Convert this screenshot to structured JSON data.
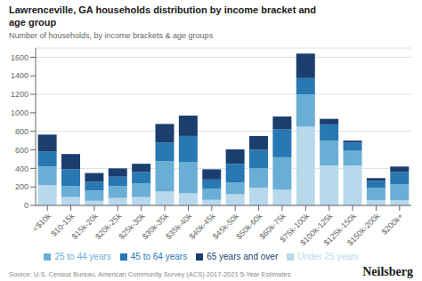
{
  "chart_data": {
    "type": "bar",
    "stacked": true,
    "title": "Lawrenceville, GA households distribution by income bracket and\nage group",
    "subtitle": "Number of households, by income brackets & age groups",
    "source": "Source: U.S. Census Bureau, American Community Survey (ACS) 2017-2021 5-Year Estimates",
    "annotations": [
      "Neilsberg"
    ],
    "categories": [
      "<$10k",
      "$10-15k",
      "$15k-20k",
      "$20k-25k",
      "$25k-30k",
      "$30k-35k",
      "$35k-40k",
      "$40k-45k",
      "$45k-50k",
      "$50k-60k",
      "$60k-75k",
      "$75k-100k",
      "$100k-125k",
      "$125k-150k",
      "$150k-200k",
      "$200k+"
    ],
    "series": [
      {
        "name": "Under 25 years",
        "color": "#b8d9ec",
        "values": [
          220,
          90,
          50,
          80,
          90,
          150,
          130,
          60,
          120,
          190,
          170,
          850,
          430,
          430,
          55,
          55
        ]
      },
      {
        "name": "25 to 44 years",
        "color": "#6aaed6",
        "values": [
          200,
          120,
          110,
          130,
          150,
          330,
          340,
          120,
          130,
          210,
          350,
          350,
          270,
          160,
          135,
          175
        ]
      },
      {
        "name": "45 to 64 years",
        "color": "#2878b4",
        "values": [
          160,
          180,
          95,
          100,
          120,
          200,
          280,
          100,
          200,
          200,
          300,
          175,
          175,
          90,
          75,
          130
        ]
      },
      {
        "name": "65 years and over",
        "color": "#1a3f6f",
        "values": [
          185,
          165,
          95,
          90,
          90,
          200,
          220,
          110,
          155,
          150,
          140,
          265,
          60,
          20,
          30,
          60
        ]
      }
    ],
    "ylim": [
      0,
      1700
    ],
    "yticks": [
      0,
      200,
      400,
      600,
      800,
      1000,
      1200,
      1400,
      1600
    ],
    "grid": true,
    "legend": "bottom"
  }
}
